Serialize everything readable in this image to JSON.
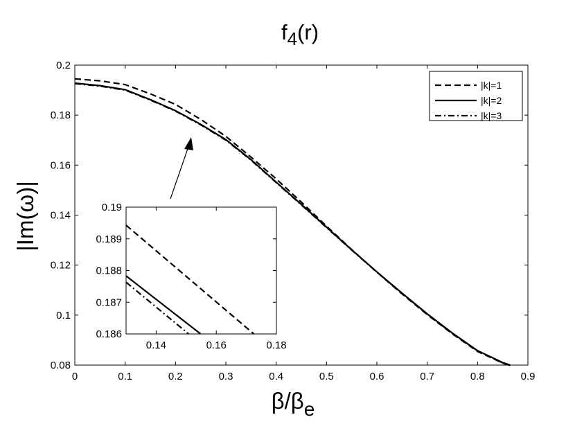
{
  "chart_data": [
    {
      "type": "line",
      "title": {
        "main": "f",
        "sub": "4",
        "suffix": "(r)"
      },
      "xlabel": {
        "main": "β/β",
        "sub": "e"
      },
      "ylabel": "|Im(ω)|",
      "xlim": [
        0,
        0.9
      ],
      "ylim": [
        0.08,
        0.2
      ],
      "xticks": [
        "0",
        "0.1",
        "0.2",
        "0.3",
        "0.4",
        "0.5",
        "0.6",
        "0.7",
        "0.8",
        "0.9"
      ],
      "yticks": [
        "0.08",
        "0.1",
        "0.12",
        "0.14",
        "0.16",
        "0.18",
        "0.2"
      ],
      "legend_position": "top-right",
      "series": [
        {
          "name": "|k|=1",
          "dash": "dashed",
          "x": [
            0,
            0.05,
            0.1,
            0.15,
            0.2,
            0.25,
            0.3,
            0.35,
            0.4,
            0.45,
            0.5,
            0.55,
            0.6,
            0.65,
            0.7,
            0.75,
            0.8,
            0.85,
            0.865
          ],
          "y": [
            0.1945,
            0.1937,
            0.1922,
            0.1885,
            0.1843,
            0.1783,
            0.1715,
            0.1632,
            0.1545,
            0.1452,
            0.1356,
            0.1262,
            0.1172,
            0.1085,
            0.1002,
            0.0925,
            0.0855,
            0.0808,
            0.0798
          ]
        },
        {
          "name": "|k|=2",
          "dash": "solid",
          "x": [
            0,
            0.05,
            0.1,
            0.15,
            0.2,
            0.25,
            0.3,
            0.35,
            0.4,
            0.45,
            0.5,
            0.55,
            0.6,
            0.65,
            0.7,
            0.75,
            0.8,
            0.85,
            0.865
          ],
          "y": [
            0.1928,
            0.1918,
            0.1902,
            0.1862,
            0.1818,
            0.1763,
            0.1702,
            0.1622,
            0.1532,
            0.1443,
            0.1352,
            0.1261,
            0.1173,
            0.1088,
            0.1005,
            0.0928,
            0.0858,
            0.081,
            0.08
          ]
        },
        {
          "name": "|k|=3",
          "dash": "dashdot",
          "x": [
            0,
            0.05,
            0.1,
            0.15,
            0.2,
            0.25,
            0.3,
            0.35,
            0.4,
            0.45,
            0.5,
            0.55,
            0.6,
            0.65,
            0.7,
            0.75,
            0.8,
            0.85,
            0.865
          ],
          "y": [
            0.1926,
            0.1916,
            0.19,
            0.186,
            0.1816,
            0.1761,
            0.17,
            0.162,
            0.153,
            0.1441,
            0.135,
            0.126,
            0.1172,
            0.1087,
            0.1004,
            0.0927,
            0.0857,
            0.0809,
            0.0799
          ]
        }
      ]
    },
    {
      "type": "line",
      "role": "inset",
      "xlim": [
        0.13,
        0.18
      ],
      "ylim": [
        0.186,
        0.19
      ],
      "xticks": [
        "0.14",
        "0.16",
        "0.18"
      ],
      "yticks": [
        "0.186",
        "0.187",
        "0.188",
        "0.189",
        "0.19"
      ],
      "series": [
        {
          "name": "|k|=1",
          "dash": "dashed",
          "x": [
            0.13,
            0.1725
          ],
          "y": [
            0.18943,
            0.186
          ]
        },
        {
          "name": "|k|=2",
          "dash": "solid",
          "x": [
            0.13,
            0.1548
          ],
          "y": [
            0.18783,
            0.186
          ]
        },
        {
          "name": "|k|=3",
          "dash": "dashdot",
          "x": [
            0.13,
            0.1508
          ],
          "y": [
            0.18763,
            0.186
          ]
        }
      ]
    }
  ]
}
